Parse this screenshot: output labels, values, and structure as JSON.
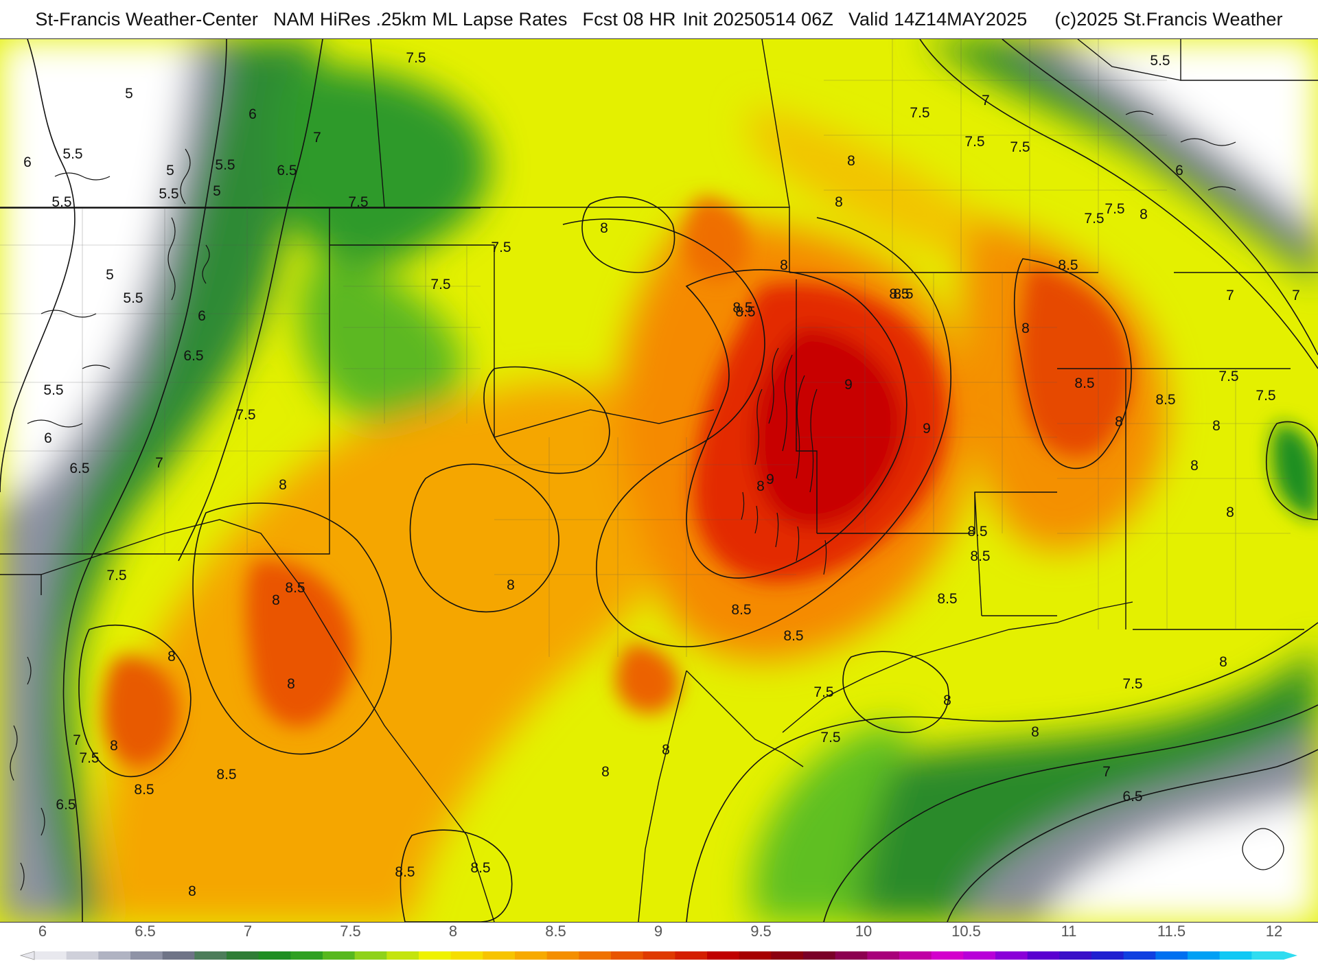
{
  "header": {
    "source": "St-Francis Weather-Center",
    "model": "NAM HiRes .25km",
    "field": "ML Lapse Rates",
    "forecast": "Fcst 08 HR",
    "init": "Init 20250514 06Z",
    "valid": "Valid 14Z14MAY2025",
    "copyright": "(c)2025 St.Francis Weather"
  },
  "map": {
    "contour_labels": [
      {
        "text": "7.5"
      },
      {
        "text": "5"
      },
      {
        "text": "6"
      },
      {
        "text": "5.5"
      },
      {
        "text": "6"
      },
      {
        "text": "5.5"
      },
      {
        "text": "5"
      },
      {
        "text": "5.5"
      },
      {
        "text": "6.5"
      },
      {
        "text": "7"
      },
      {
        "text": "5"
      },
      {
        "text": "5.5"
      },
      {
        "text": "7.5"
      },
      {
        "text": "5"
      },
      {
        "text": "5.5"
      },
      {
        "text": "7.5"
      },
      {
        "text": "7.5"
      },
      {
        "text": "8"
      },
      {
        "text": "8"
      },
      {
        "text": "8.5"
      },
      {
        "text": "8.5"
      },
      {
        "text": "7"
      },
      {
        "text": "6"
      },
      {
        "text": "6.5"
      },
      {
        "text": "5.5"
      },
      {
        "text": "6"
      },
      {
        "text": "7.5"
      },
      {
        "text": "6.5"
      },
      {
        "text": "7"
      },
      {
        "text": "8"
      },
      {
        "text": "9"
      },
      {
        "text": "9"
      },
      {
        "text": "8"
      },
      {
        "text": "8"
      },
      {
        "text": "8"
      },
      {
        "text": "9"
      },
      {
        "text": "8.5"
      },
      {
        "text": "8.5"
      },
      {
        "text": "8.5"
      },
      {
        "text": "7.5"
      },
      {
        "text": "8"
      },
      {
        "text": "8.5"
      },
      {
        "text": "8"
      },
      {
        "text": "7.5"
      },
      {
        "text": "8"
      },
      {
        "text": "7.5"
      },
      {
        "text": "7.5"
      },
      {
        "text": "8.5"
      },
      {
        "text": "8"
      },
      {
        "text": "7"
      },
      {
        "text": "8"
      },
      {
        "text": "8.5"
      },
      {
        "text": "7.5"
      },
      {
        "text": "8.5"
      },
      {
        "text": "8"
      },
      {
        "text": "8"
      },
      {
        "text": "8"
      },
      {
        "text": "8.5"
      },
      {
        "text": "8.5"
      },
      {
        "text": "8"
      },
      {
        "text": "8.5"
      },
      {
        "text": "8.5"
      },
      {
        "text": "8"
      },
      {
        "text": "7.5"
      },
      {
        "text": "8.5"
      },
      {
        "text": "8.5"
      },
      {
        "text": "7.5"
      },
      {
        "text": "8"
      },
      {
        "text": "7"
      },
      {
        "text": "8"
      },
      {
        "text": "7.5"
      },
      {
        "text": "8"
      },
      {
        "text": "6.5"
      },
      {
        "text": "8"
      },
      {
        "text": "8"
      },
      {
        "text": "7"
      },
      {
        "text": "6.5"
      },
      {
        "text": "8.5"
      },
      {
        "text": "8.5"
      },
      {
        "text": "8"
      },
      {
        "text": "8"
      },
      {
        "text": "7.5"
      },
      {
        "text": "5.5"
      },
      {
        "text": "6"
      },
      {
        "text": "7.5"
      },
      {
        "text": "7"
      },
      {
        "text": "7.5"
      },
      {
        "text": "7.5"
      }
    ]
  },
  "scale": {
    "ticks": [
      "6",
      "6.5",
      "7",
      "7.5",
      "8",
      "8.5",
      "9",
      "9.5",
      "10",
      "10.5",
      "11",
      "11.5",
      "12"
    ],
    "colors": [
      "#e8e8ee",
      "#cfd0da",
      "#b0b3c2",
      "#8f93a6",
      "#6f7487",
      "#4d7d5a",
      "#2f7d35",
      "#1e8e22",
      "#2fa021",
      "#57b81e",
      "#8fd21a",
      "#c4e40e",
      "#eff200",
      "#f5de00",
      "#f7c400",
      "#f7aa00",
      "#f48f00",
      "#ef7200",
      "#e85500",
      "#df3a00",
      "#d41f00",
      "#c00000",
      "#a60000",
      "#8c0010",
      "#7a0028",
      "#8c0050",
      "#a8007a",
      "#c000a4",
      "#d300cc",
      "#b800d8",
      "#8a00d8",
      "#5a00d0",
      "#3a10c8",
      "#2020d0",
      "#1040e0",
      "#0070f0",
      "#00a0f4",
      "#10c8f4",
      "#30dcf0"
    ]
  }
}
